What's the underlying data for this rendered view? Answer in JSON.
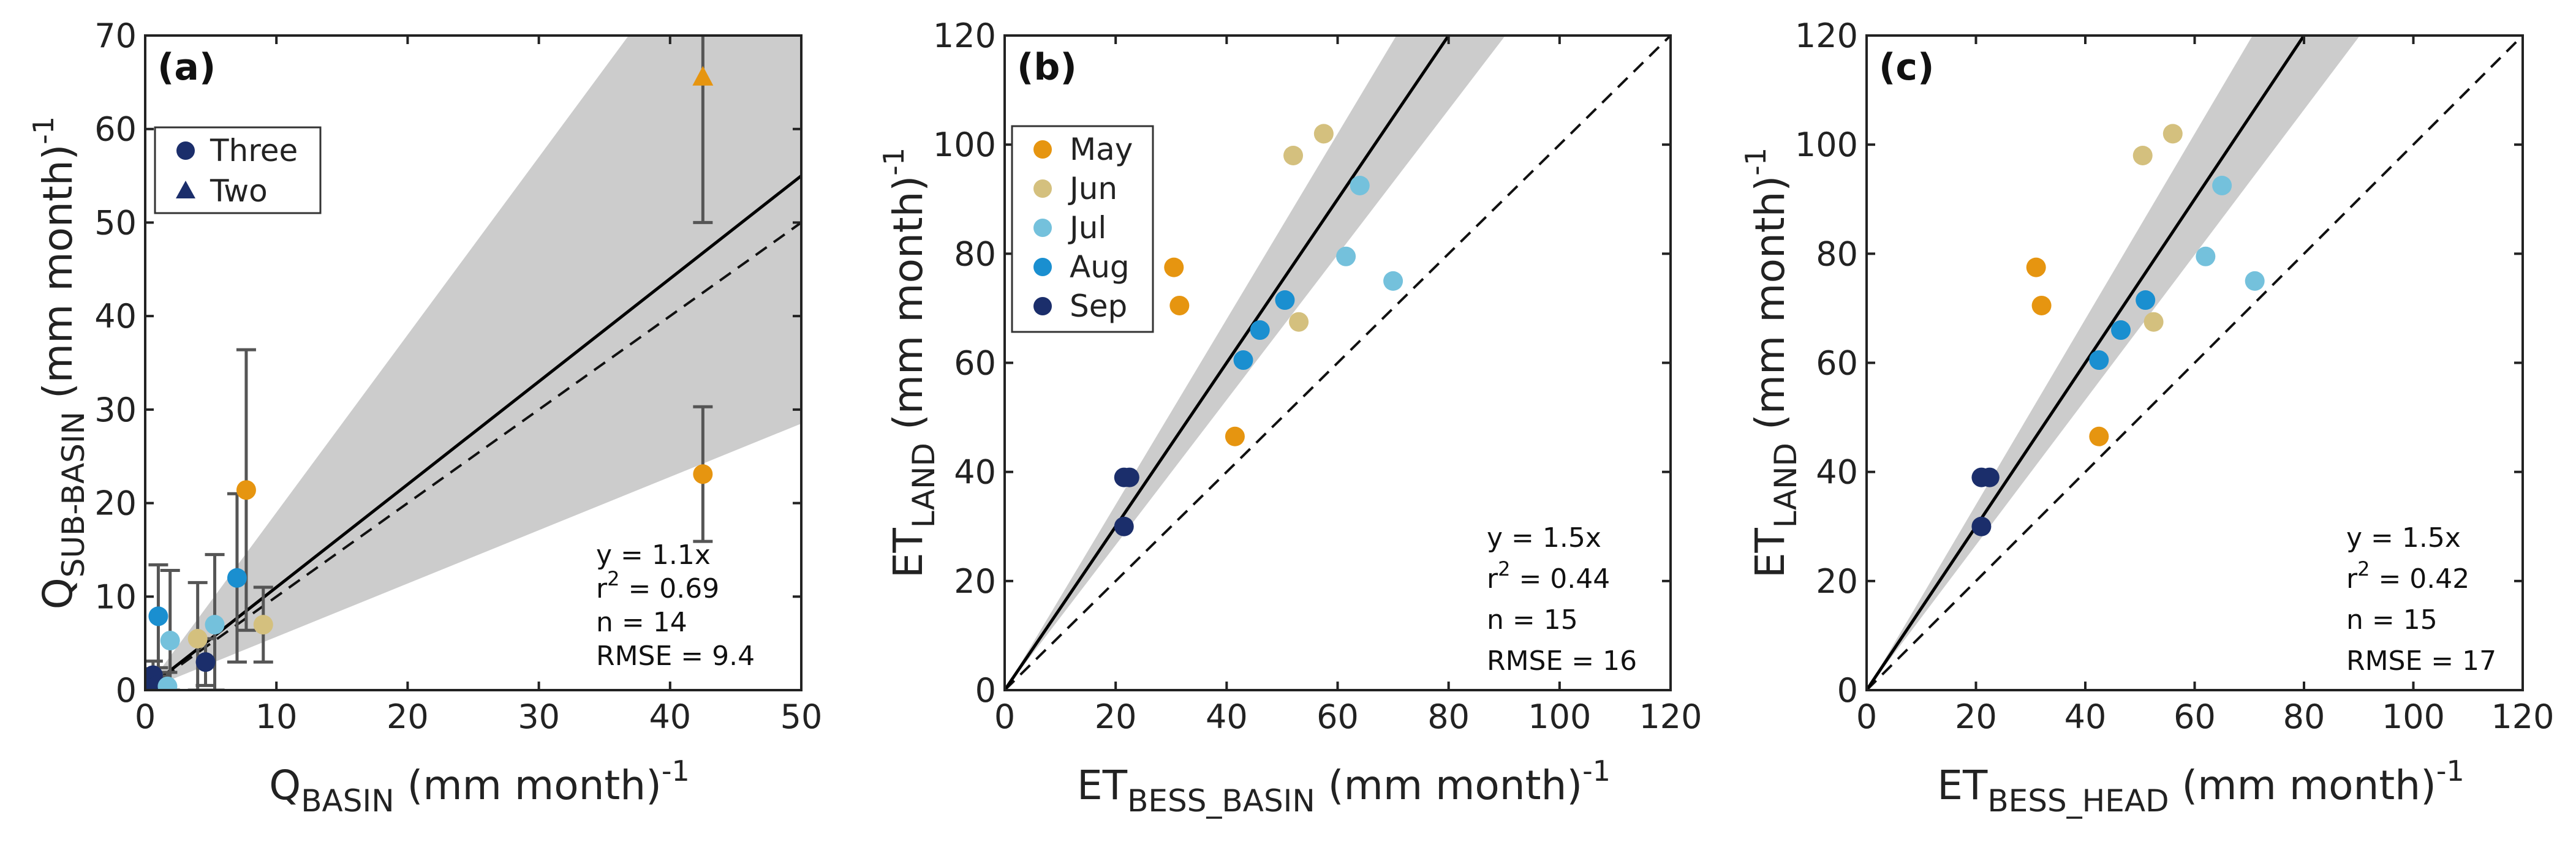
{
  "colors": {
    "may": "#e69510",
    "jun": "#d4c07e",
    "jul": "#74c1dc",
    "aug": "#1a8fd0",
    "sep": "#1b2e6b",
    "band": "#cccccc",
    "errorbar": "#555555"
  },
  "chart_data": [
    {
      "type": "scatter",
      "panel_label": "(a)",
      "xlim": [
        0,
        50
      ],
      "ylim": [
        0,
        70
      ],
      "xticks": [
        "0",
        "10",
        "20",
        "30",
        "40",
        "50"
      ],
      "yticks": [
        "0",
        "10",
        "20",
        "30",
        "40",
        "50",
        "60",
        "70"
      ],
      "xticks_values": [
        0,
        10,
        20,
        30,
        40,
        50
      ],
      "yticks_values": [
        0,
        10,
        20,
        30,
        40,
        50,
        60,
        70
      ],
      "xlabel": {
        "base": "Q",
        "sub": "BASIN",
        "rest": " (mm month)",
        "sup": "-1"
      },
      "ylabel": {
        "base": "Q",
        "sub": "SUB-BASIN",
        "rest": " (mm month)",
        "sup": "-1"
      },
      "fit_slope": 1.1,
      "band_slopes": [
        0.57,
        1.9
      ],
      "one_to_one": true,
      "legend": [
        {
          "label": "Three",
          "marker": "circle"
        },
        {
          "label": "Two",
          "marker": "triangle"
        }
      ],
      "stats": {
        "eq": "y = 1.1x",
        "r2_label": "r",
        "r2_sup": "2",
        "r2_value": " = 0.69",
        "n": "n = 14",
        "rmse": "RMSE = 9.4"
      },
      "points": [
        {
          "x": 0.4,
          "y": 0.8,
          "c": "sep",
          "m": "circle",
          "err": 1.5
        },
        {
          "x": 0.6,
          "y": 1.6,
          "c": "sep",
          "m": "circle",
          "err": 1.5
        },
        {
          "x": 0.9,
          "y": 0.5,
          "c": "sep",
          "m": "circle",
          "err": 1.0
        },
        {
          "x": 1.0,
          "y": 7.9,
          "c": "aug",
          "m": "circle",
          "err": 5.5
        },
        {
          "x": 1.7,
          "y": 0.4,
          "c": "jul",
          "m": "circle",
          "err": 1.5
        },
        {
          "x": 1.9,
          "y": 5.3,
          "c": "jul",
          "m": "circle",
          "err": 7.5
        },
        {
          "x": 4.0,
          "y": 5.5,
          "c": "jun",
          "m": "circle",
          "err": 6.0
        },
        {
          "x": 4.6,
          "y": 3.0,
          "c": "sep",
          "m": "circle",
          "err": 2.5
        },
        {
          "x": 5.3,
          "y": 7.0,
          "c": "jul",
          "m": "circle",
          "err": 7.5
        },
        {
          "x": 7.0,
          "y": 12.0,
          "c": "aug",
          "m": "circle",
          "err": 9.0
        },
        {
          "x": 7.7,
          "y": 21.4,
          "c": "may",
          "m": "circle",
          "err": 15.0
        },
        {
          "x": 9.0,
          "y": 7.0,
          "c": "jun",
          "m": "circle",
          "err": 4.0
        },
        {
          "x": 42.5,
          "y": 23.1,
          "c": "may",
          "m": "circle",
          "err": 7.2
        },
        {
          "x": 42.5,
          "y": 65.5,
          "c": "may",
          "m": "triangle",
          "err": 15.5
        }
      ]
    },
    {
      "type": "scatter",
      "panel_label": "(b)",
      "xlim": [
        0,
        120
      ],
      "ylim": [
        0,
        120
      ],
      "xticks": [
        "0",
        "20",
        "40",
        "60",
        "80",
        "100",
        "120"
      ],
      "yticks": [
        "0",
        "20",
        "40",
        "60",
        "80",
        "100",
        "120"
      ],
      "xticks_values": [
        0,
        20,
        40,
        60,
        80,
        100,
        120
      ],
      "yticks_values": [
        0,
        20,
        40,
        60,
        80,
        100,
        120
      ],
      "xlabel": {
        "base": "ET",
        "sub": "BESS_BASIN",
        "rest": " (mm month)",
        "sup": "-1"
      },
      "ylabel": {
        "base": "ET",
        "sub": "LAND",
        "rest": " (mm month)",
        "sup": "-1"
      },
      "fit_slope": 1.5,
      "band_slopes": [
        1.33,
        1.7
      ],
      "one_to_one": true,
      "legend": [
        {
          "label": "May",
          "c": "may"
        },
        {
          "label": "Jun",
          "c": "jun"
        },
        {
          "label": "Jul",
          "c": "jul"
        },
        {
          "label": "Aug",
          "c": "aug"
        },
        {
          "label": "Sep",
          "c": "sep"
        }
      ],
      "stats": {
        "eq": "y = 1.5x",
        "r2_label": "r",
        "r2_sup": "2",
        "r2_value": " = 0.44",
        "n": "n = 15",
        "rmse": "RMSE = 16"
      },
      "points": [
        {
          "x": 30.5,
          "y": 77.5,
          "c": "may"
        },
        {
          "x": 31.5,
          "y": 70.5,
          "c": "may"
        },
        {
          "x": 41.5,
          "y": 46.5,
          "c": "may"
        },
        {
          "x": 52.0,
          "y": 98.0,
          "c": "jun"
        },
        {
          "x": 57.5,
          "y": 102.0,
          "c": "jun"
        },
        {
          "x": 53.0,
          "y": 67.5,
          "c": "jun"
        },
        {
          "x": 64.0,
          "y": 92.5,
          "c": "jul"
        },
        {
          "x": 61.5,
          "y": 79.5,
          "c": "jul"
        },
        {
          "x": 70.0,
          "y": 75.0,
          "c": "jul"
        },
        {
          "x": 43.0,
          "y": 60.5,
          "c": "aug"
        },
        {
          "x": 46.0,
          "y": 66.0,
          "c": "aug"
        },
        {
          "x": 50.5,
          "y": 71.5,
          "c": "aug"
        },
        {
          "x": 21.5,
          "y": 39.0,
          "c": "sep"
        },
        {
          "x": 22.5,
          "y": 39.0,
          "c": "sep"
        },
        {
          "x": 21.5,
          "y": 30.0,
          "c": "sep"
        }
      ]
    },
    {
      "type": "scatter",
      "panel_label": "(c)",
      "xlim": [
        0,
        120
      ],
      "ylim": [
        0,
        120
      ],
      "xticks": [
        "0",
        "20",
        "40",
        "60",
        "80",
        "100",
        "120"
      ],
      "yticks": [
        "0",
        "20",
        "40",
        "60",
        "80",
        "100",
        "120"
      ],
      "xticks_values": [
        0,
        20,
        40,
        60,
        80,
        100,
        120
      ],
      "yticks_values": [
        0,
        20,
        40,
        60,
        80,
        100,
        120
      ],
      "xlabel": {
        "base": "ET",
        "sub": "BESS_HEAD",
        "rest": " (mm month)",
        "sup": "-1"
      },
      "ylabel": {
        "base": "ET",
        "sub": "LAND",
        "rest": " (mm month)",
        "sup": "-1"
      },
      "fit_slope": 1.5,
      "band_slopes": [
        1.33,
        1.7
      ],
      "one_to_one": true,
      "legend": [],
      "stats": {
        "eq": "y = 1.5x",
        "r2_label": "r",
        "r2_sup": "2",
        "r2_value": " = 0.42",
        "n": "n = 15",
        "rmse": "RMSE = 17"
      },
      "points": [
        {
          "x": 31.0,
          "y": 77.5,
          "c": "may"
        },
        {
          "x": 32.0,
          "y": 70.5,
          "c": "may"
        },
        {
          "x": 42.5,
          "y": 46.5,
          "c": "may"
        },
        {
          "x": 50.5,
          "y": 98.0,
          "c": "jun"
        },
        {
          "x": 56.0,
          "y": 102.0,
          "c": "jun"
        },
        {
          "x": 52.5,
          "y": 67.5,
          "c": "jun"
        },
        {
          "x": 65.0,
          "y": 92.5,
          "c": "jul"
        },
        {
          "x": 62.0,
          "y": 79.5,
          "c": "jul"
        },
        {
          "x": 71.0,
          "y": 75.0,
          "c": "jul"
        },
        {
          "x": 42.5,
          "y": 60.5,
          "c": "aug"
        },
        {
          "x": 46.5,
          "y": 66.0,
          "c": "aug"
        },
        {
          "x": 51.0,
          "y": 71.5,
          "c": "aug"
        },
        {
          "x": 21.0,
          "y": 39.0,
          "c": "sep"
        },
        {
          "x": 22.5,
          "y": 39.0,
          "c": "sep"
        },
        {
          "x": 21.0,
          "y": 30.0,
          "c": "sep"
        }
      ]
    }
  ]
}
